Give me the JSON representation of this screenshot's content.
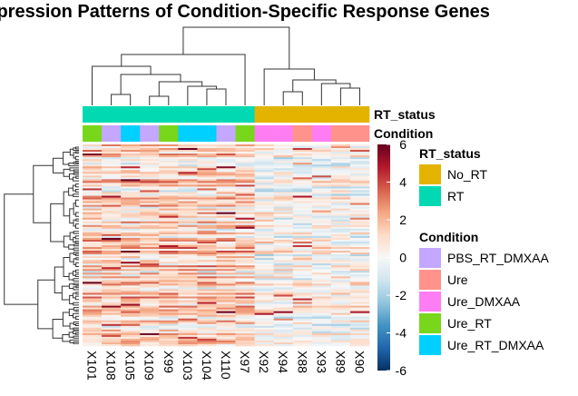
{
  "chart_data": {
    "type": "heatmap",
    "title": "Expression Patterns of Condition-Specific Response Genes",
    "columns": [
      "X101",
      "X108",
      "X105",
      "X109",
      "X99",
      "X103",
      "X104",
      "X110",
      "X97",
      "X92",
      "X94",
      "X88",
      "X93",
      "X89",
      "X90"
    ],
    "annotation_tracks": [
      {
        "name": "RT_status",
        "values": [
          "RT",
          "RT",
          "RT",
          "RT",
          "RT",
          "RT",
          "RT",
          "RT",
          "RT",
          "No_RT",
          "No_RT",
          "No_RT",
          "No_RT",
          "No_RT",
          "No_RT"
        ]
      },
      {
        "name": "Condition",
        "values": [
          "Ure_RT",
          "PBS_RT_DMXAA",
          "Ure_RT_DMXAA",
          "PBS_RT_DMXAA",
          "Ure_RT",
          "Ure_RT_DMXAA",
          "Ure_RT_DMXAA",
          "PBS_RT_DMXAA",
          "Ure_RT",
          "Ure_DMXAA",
          "Ure_DMXAA",
          "Ure",
          "Ure_DMXAA",
          "Ure",
          "Ure"
        ]
      }
    ],
    "legends": [
      {
        "title": "RT_status",
        "entries": [
          {
            "label": "No_RT",
            "color": "#E4B300"
          },
          {
            "label": "RT",
            "color": "#00D9B1"
          }
        ]
      },
      {
        "title": "Condition",
        "entries": [
          {
            "label": "PBS_RT_DMXAA",
            "color": "#C4A8FF"
          },
          {
            "label": "Ure",
            "color": "#FF928A"
          },
          {
            "label": "Ure_DMXAA",
            "color": "#FF7DF2"
          },
          {
            "label": "Ure_RT",
            "color": "#78D71A"
          },
          {
            "label": "Ure_RT_DMXAA",
            "color": "#00D0FF"
          }
        ]
      }
    ],
    "color_scale": {
      "range": [
        -6,
        6
      ],
      "ticks": [
        "6",
        "4",
        "2",
        "0",
        "-2",
        "-4",
        "-6"
      ],
      "tick_values": [
        6,
        4,
        2,
        0,
        -2,
        -4,
        -6
      ],
      "colors": [
        "#053061",
        "#2166AC",
        "#4393C3",
        "#92C5DE",
        "#D1E5F0",
        "#F7F7F7",
        "#FDDBC7",
        "#F4A582",
        "#D6604D",
        "#B2182B",
        "#67001F"
      ]
    },
    "column_dendrogram": true,
    "row_dendrogram": true,
    "row_names_shown": false,
    "column_labels_rotation": 90
  }
}
